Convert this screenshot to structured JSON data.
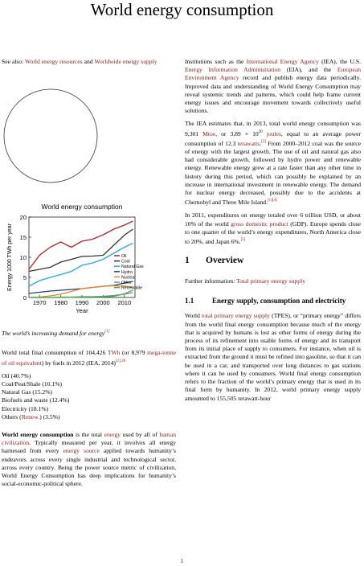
{
  "title": "World energy consumption",
  "left": {
    "see_also_prefix": "See also: ",
    "see_also_link1": "World energy resources",
    "see_also_and": " and ",
    "see_also_link2": "Worldwide energy supply",
    "caption": "The world’s increasing demand for energy",
    "caption_ref": "[1]",
    "total_text_1": "World total final consumption of 104,426 ",
    "total_link1": "TWh",
    "total_text_2": " (or 8,979 ",
    "total_link2": "mega-tonne of oil equivalent",
    "total_text_3": ") by fuels in 2012 (IEA, 2014)",
    "total_ref": "[2]:28",
    "list": [
      "Oil (40.7%)",
      "Coal/Peat/Shale (10.1%)",
      "Natural Gas (15.2%)",
      "Biofuels and waste (12.4%)",
      "Electricity (18.1%)"
    ],
    "list_others_prefix": "Others (",
    "list_others_link": "Renew.",
    "list_others_suffix": ") (3.5%)",
    "intro_bold": "World energy consumption",
    "intro_1": " is the total ",
    "intro_link1": "energy",
    "intro_2": " used by all of ",
    "intro_link2": "human civilization",
    "intro_3": ". Typically measured per year, it involves all energy harnessed from every ",
    "intro_link3": "energy source",
    "intro_4": " applied towards humanity’s endeavors across every single industrial and technological sector, across every country. Being the power source metric of civilization, World Energy Consumption has deep implications for humanity’s social-economic-political sphere."
  },
  "right": {
    "p1_1": "Institutions such as the ",
    "p1_link1": "International Energy Agency",
    "p1_2": " (IEA), the U.S. ",
    "p1_link2": "Energy Information Administration",
    "p1_3": " (EIA), and the ",
    "p1_link3": "European Environment Agency",
    "p1_4": " record and publish energy data periodically. Improved data and understanding of World Energy Consumption may reveal systemic trends and patterns, which could help frame current energy issues and encourage movement towards collectively useful solutions.",
    "p2_1": "The IEA estimates that, in 2013, total world energy consumption was 9,301 ",
    "p2_link1": "Mtoe",
    "p2_2": ", or 3.89 × 10",
    "p2_exp": "20",
    "p2_link2": "joules",
    "p2_3": ", equal to an average power consumption of 12.3 ",
    "p2_link3": "terawatts",
    "p2_ref1": "[3]",
    "p2_4": " From 2000–2012 coal was the source of energy with the largest growth. The use of oil and natural gas also had considerable growth, followed by hydro power and renewable energy. Renewable energy grew at a rate faster than any other time in history during this period, which can possibly be explained by an increase in international investment in renewable energy. The demand for nuclear energy decreased, possibly due to the accidents at Chernobyl and Three Mile Island.",
    "p2_ref2": "[1][4]",
    "p3_1": "In 2011, expenditures on energy totaled over 6 trillion USD, or about 10% of the world ",
    "p3_link1": "gross domestic product",
    "p3_2": " (GDP). Europe spends close to one quarter of the world’s energy expenditures, North America close to 20%, and Japan 6%.",
    "p3_ref": "[5]",
    "h2_num": "1",
    "h2_text": "Overview",
    "further_prefix": "Further information: ",
    "further_link": "Total primary energy supply",
    "h3_num": "1.1",
    "h3_text": "Energy supply, consumption and electricity",
    "p4_1": "World ",
    "p4_link1": "total primary energy supply",
    "p4_2": " (TPES), or “primary energy” differs from the world final energy consumption because much of the energy that is acquired by humans is lost as other forms of energy during the process of its refinement into usable forms of energy and its transport from its initial place of supply to consumers. For instance, when oil is extracted from the ground it must be refined into gasoline, so that it can be used in a car, and transported over long distances to gas stations where it can be used by consumers. World final energy consumption refers to the fraction of the world’s primary energy that is used in its final form by humanity. In 2012, world primary energy supply amounted to 155,505 terawatt-hour"
  },
  "page_number": "1",
  "chart_data": {
    "type": "line",
    "title": "World energy consumption",
    "xlabel": "Year",
    "ylabel": "Energy 1000 TWh per year",
    "xlim": [
      1965,
      2015
    ],
    "ylim": [
      0,
      20
    ],
    "xticks": [
      "1970",
      "1980",
      "1990",
      "2000",
      "2010"
    ],
    "yticks": [
      "0",
      "5",
      "10",
      "15",
      "20"
    ],
    "legend_position": "right",
    "x": [
      1965,
      1970,
      1975,
      1980,
      1985,
      1990,
      1995,
      2000,
      2005,
      2010,
      2014
    ],
    "series": [
      {
        "name": "Oil",
        "color": "#b22222",
        "values": [
          7.0,
          10.5,
          12.5,
          13.8,
          12.5,
          14.0,
          14.5,
          15.6,
          17.0,
          18.0,
          19.0
        ]
      },
      {
        "name": "Coal",
        "color": "#333333",
        "values": [
          6.5,
          7.0,
          7.5,
          8.8,
          9.5,
          10.2,
          10.3,
          10.5,
          13.0,
          15.5,
          17.0
        ]
      },
      {
        "name": "Natural Gas",
        "color": "#22a7e8",
        "values": [
          2.8,
          4.2,
          5.0,
          5.7,
          6.5,
          8.0,
          8.6,
          9.5,
          11.0,
          12.5,
          13.5
        ]
      },
      {
        "name": "Hydro",
        "color": "#1f3a93",
        "values": [
          1.0,
          1.3,
          1.6,
          1.8,
          2.0,
          2.2,
          2.5,
          2.8,
          3.0,
          3.6,
          4.0
        ]
      },
      {
        "name": "Nuclear",
        "color": "#e8891d",
        "values": [
          0.0,
          0.1,
          0.4,
          0.8,
          1.5,
          2.2,
          2.5,
          2.8,
          2.9,
          2.8,
          2.6
        ]
      },
      {
        "name": "Other",
        "color": "#7a8f96",
        "values": [
          0.0,
          0.0,
          0.0,
          0.1,
          0.1,
          0.2,
          0.2,
          0.3,
          0.5,
          0.8,
          1.2
        ]
      },
      {
        "name": "Renewable",
        "color": "#3cb043",
        "values": [
          0.0,
          0.0,
          0.0,
          0.0,
          0.05,
          0.1,
          0.1,
          0.15,
          0.3,
          0.9,
          1.8
        ]
      }
    ]
  }
}
